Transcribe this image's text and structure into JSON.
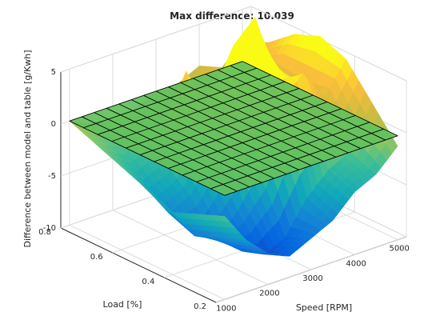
{
  "chart_data": {
    "type": "surface3d",
    "title": "Max difference: 10.039",
    "xlabel": "Speed [RPM]",
    "ylabel": "Load [%]",
    "zlabel": "Difference between model and table [g/Kwh]",
    "xlim": [
      800,
      5200
    ],
    "ylim": [
      0.2,
      0.8
    ],
    "zlim": [
      -10,
      5
    ],
    "xticks": [
      "1000",
      "2000",
      "3000",
      "4000",
      "5000"
    ],
    "yticks": [
      "0.2",
      "0.4",
      "0.6",
      "0.8"
    ],
    "zticks": [
      "-10",
      "-5",
      "0",
      "5"
    ],
    "grid": true,
    "colormap": "parula",
    "reference_plane": {
      "z": 0,
      "color": "#63c25e",
      "edge_color": "#000000"
    },
    "max_difference": 10.039,
    "surface": {
      "speed": [
        1000,
        1500,
        2000,
        2500,
        3000,
        3500,
        4000,
        4500,
        5000
      ],
      "load": [
        0.2,
        0.3,
        0.4,
        0.5,
        0.6,
        0.7,
        0.8
      ],
      "difference": [
        [
          -2,
          -5,
          -7,
          -8,
          -7,
          -6,
          -4,
          -3,
          -1
        ],
        [
          -3,
          -6,
          -8,
          -9,
          -8,
          -5,
          -3,
          -2,
          2
        ],
        [
          -4,
          -7,
          -8,
          -6,
          -3,
          3,
          5,
          2,
          5
        ],
        [
          -3,
          -6,
          -5,
          -2,
          8,
          10,
          3,
          1,
          6
        ],
        [
          -2,
          -4,
          -3,
          5,
          1,
          2,
          3,
          2,
          5
        ],
        [
          -1,
          -2,
          -1,
          -2,
          0,
          1,
          2,
          1,
          3
        ],
        [
          0,
          -1,
          -1,
          -1,
          0,
          0,
          1,
          0,
          2
        ]
      ]
    }
  }
}
